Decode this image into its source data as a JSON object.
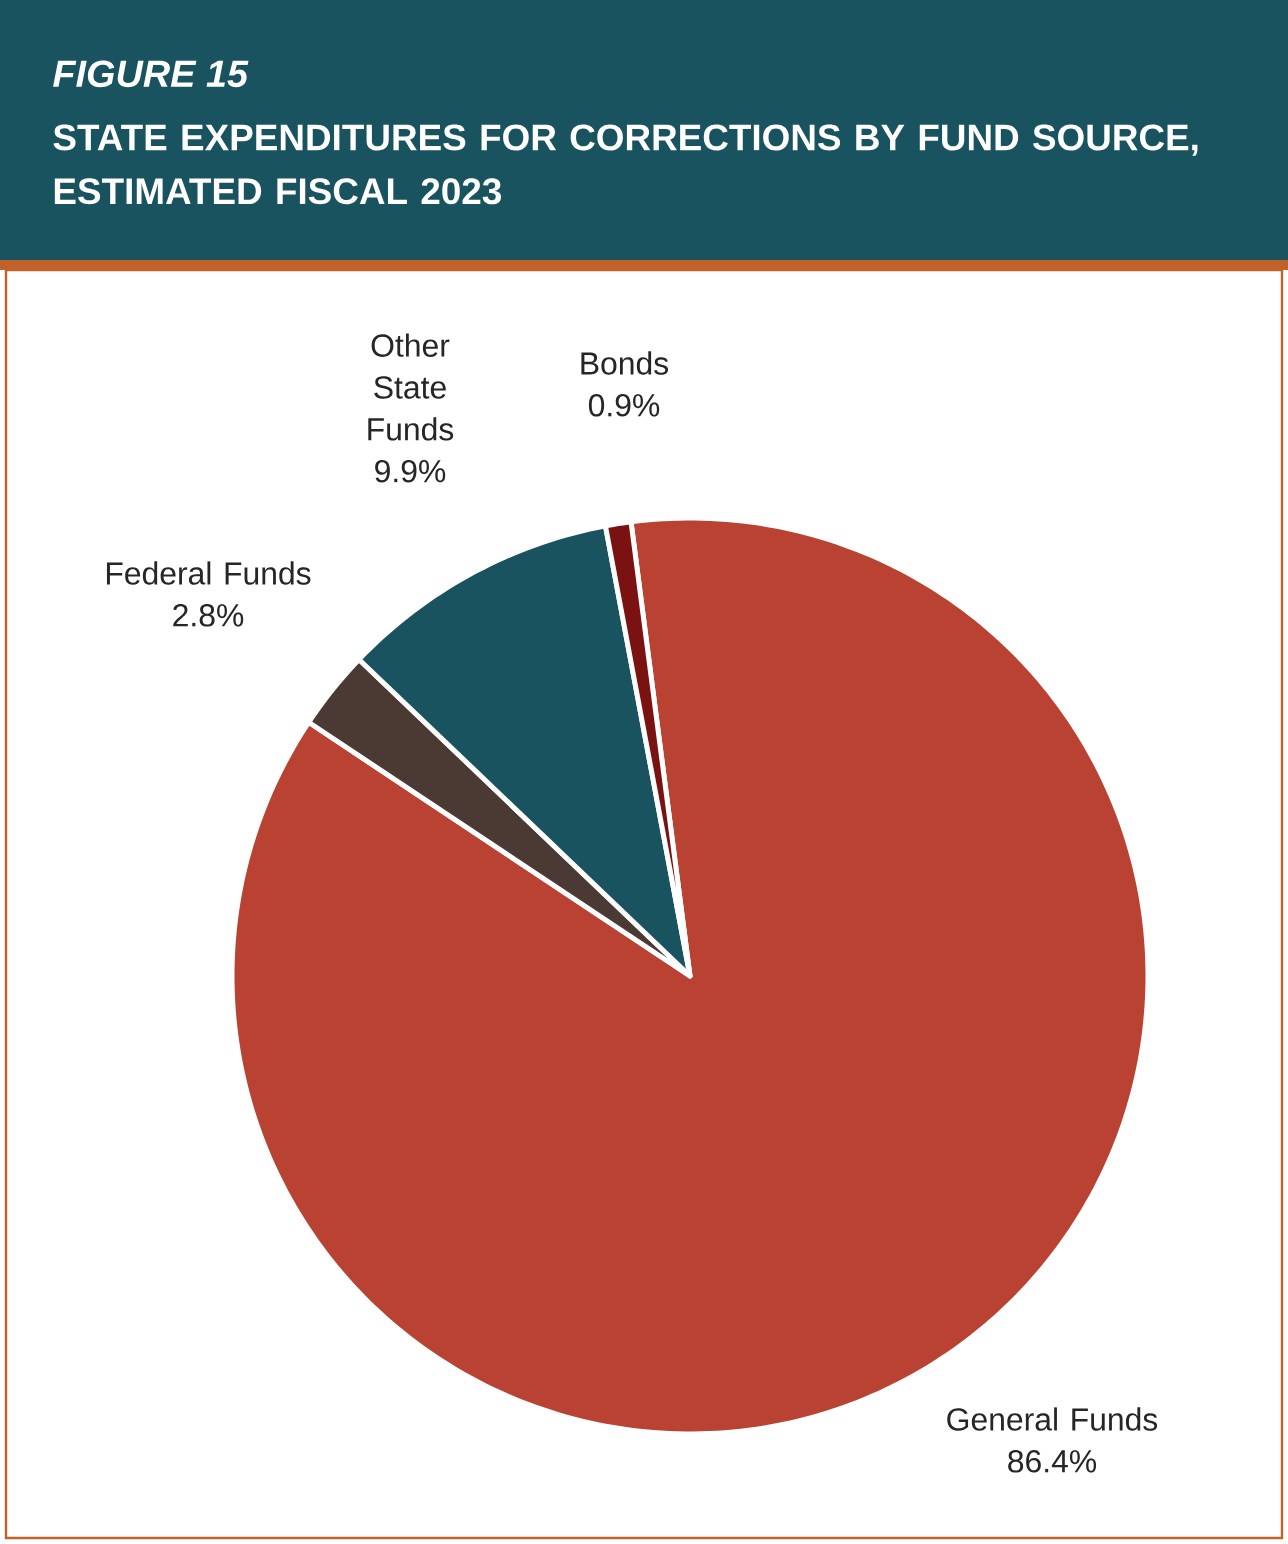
{
  "chart_data": {
    "type": "pie",
    "title": "FIGURE 15",
    "subtitle": "STATE EXPENDITURES FOR CORRECTIONS BY FUND SOURCE, ESTIMATED FISCAL 2023",
    "categories": [
      "General Funds",
      "Federal Funds",
      "Other State Funds",
      "Bonds"
    ],
    "values": [
      86.4,
      2.8,
      9.9,
      0.9
    ],
    "value_labels": [
      "86.4%",
      "2.8%",
      "9.9%",
      "0.9%"
    ],
    "colors": [
      "#b94232",
      "#4a3a33",
      "#1a5360",
      "#7a1212"
    ]
  }
}
